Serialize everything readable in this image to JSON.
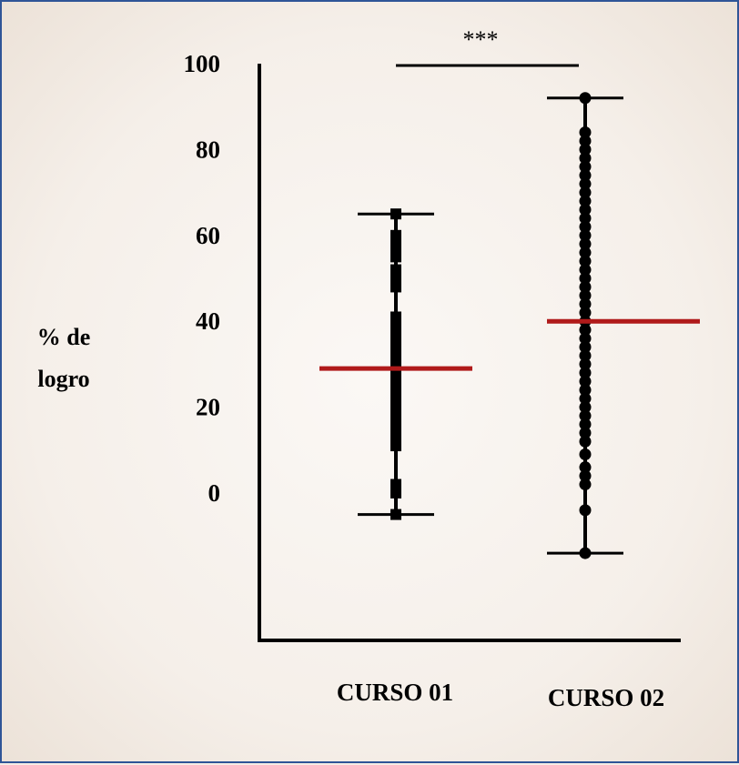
{
  "chart_data": {
    "type": "scatter",
    "subtype": "dot-plot with mean and range bars",
    "ylabel": [
      "% de",
      "logro"
    ],
    "yticks": [
      0,
      20,
      40,
      60,
      80,
      100
    ],
    "ylim": [
      -30,
      100
    ],
    "categories": [
      "CURSO 01",
      "CURSO 02"
    ],
    "series": [
      {
        "category": "CURSO 01",
        "mean": 29,
        "min": -5,
        "max": 65,
        "marker": "square",
        "values": [
          -5,
          0,
          1,
          2,
          11,
          13,
          15,
          17,
          19,
          21,
          23,
          25,
          27,
          29,
          31,
          33,
          35,
          37,
          39,
          41,
          48,
          50,
          52,
          55,
          57,
          59,
          60,
          65
        ]
      },
      {
        "category": "CURSO 02",
        "mean": 40,
        "min": -14,
        "max": 92,
        "marker": "circle",
        "values": [
          -14,
          -4,
          2,
          4,
          6,
          9,
          12,
          14,
          16,
          18,
          20,
          22,
          24,
          26,
          28,
          30,
          32,
          34,
          36,
          38,
          40,
          42,
          44,
          46,
          48,
          50,
          52,
          54,
          56,
          58,
          60,
          62,
          64,
          66,
          68,
          70,
          72,
          74,
          76,
          78,
          80,
          82,
          84,
          92
        ]
      }
    ],
    "significance": "***",
    "colors": {
      "mean_line": "#b01a1a",
      "points": "#000000",
      "frame_border": "#2f5597"
    }
  }
}
